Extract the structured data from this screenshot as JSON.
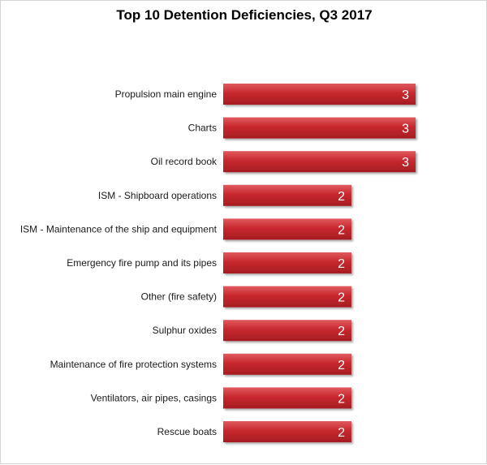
{
  "chart_data": {
    "type": "bar",
    "orientation": "horizontal",
    "title": "Top 10 Detention Deficiencies, Q3 2017",
    "categories": [
      "Propulsion main engine",
      "Charts",
      "Oil record book",
      "ISM - Shipboard operations",
      "ISM - Maintenance of the ship and equipment",
      "Emergency fire pump and its pipes",
      "Other (fire safety)",
      "Sulphur oxides",
      "Maintenance of fire protection systems",
      "Ventilators, air pipes, casings",
      "Rescue boats"
    ],
    "values": [
      3,
      3,
      3,
      2,
      2,
      2,
      2,
      2,
      2,
      2,
      2
    ],
    "xlim": [
      0,
      3
    ],
    "grid": false,
    "legend": "none",
    "data_labels": true,
    "bar_color": "#c0272d"
  }
}
